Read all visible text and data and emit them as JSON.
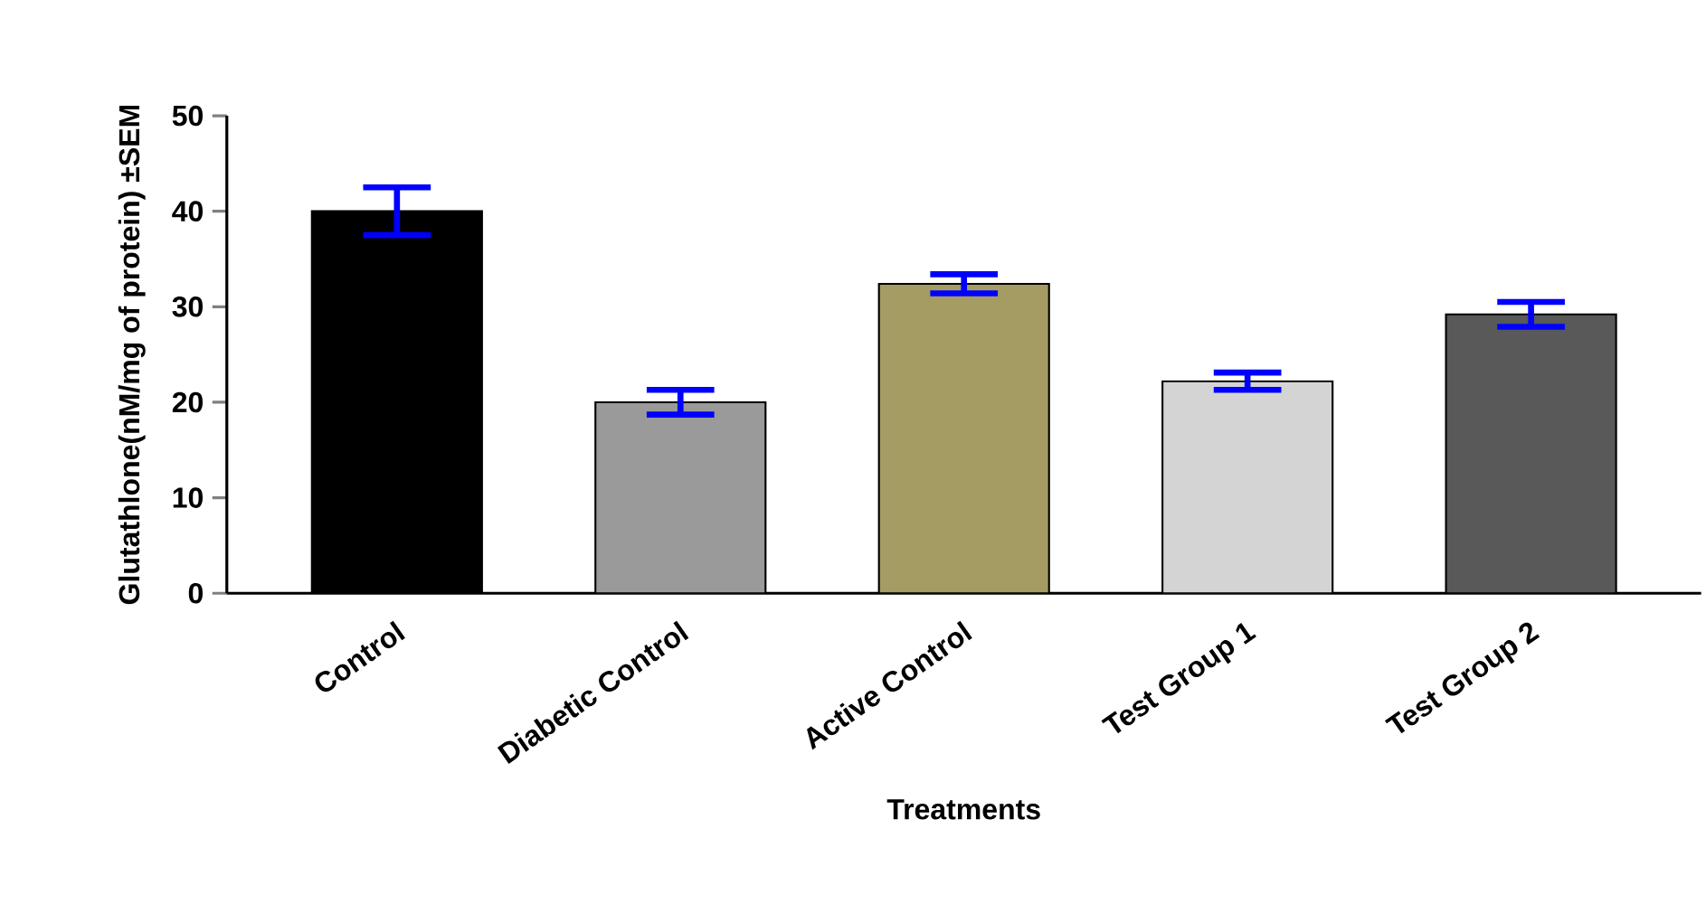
{
  "chart_data": {
    "type": "bar",
    "categories": [
      "Control",
      "Diabetic Control",
      "Active Control",
      "Test Group 1",
      "Test Group 2"
    ],
    "values": [
      40,
      20,
      32.4,
      22.2,
      29.2
    ],
    "errors": [
      2.5,
      1.3,
      1,
      0.9,
      1.3
    ],
    "colors": [
      "#000000",
      "#9a9a9a",
      "#a49c62",
      "#d4d4d4",
      "#595959"
    ],
    "ylim": [
      0,
      50
    ],
    "yticks": [
      0,
      10,
      20,
      30,
      40,
      50
    ],
    "xlabel": "Treatments",
    "ylabel": "Glutathlone(nM/mg of protein) ±SEM",
    "grid": false
  }
}
